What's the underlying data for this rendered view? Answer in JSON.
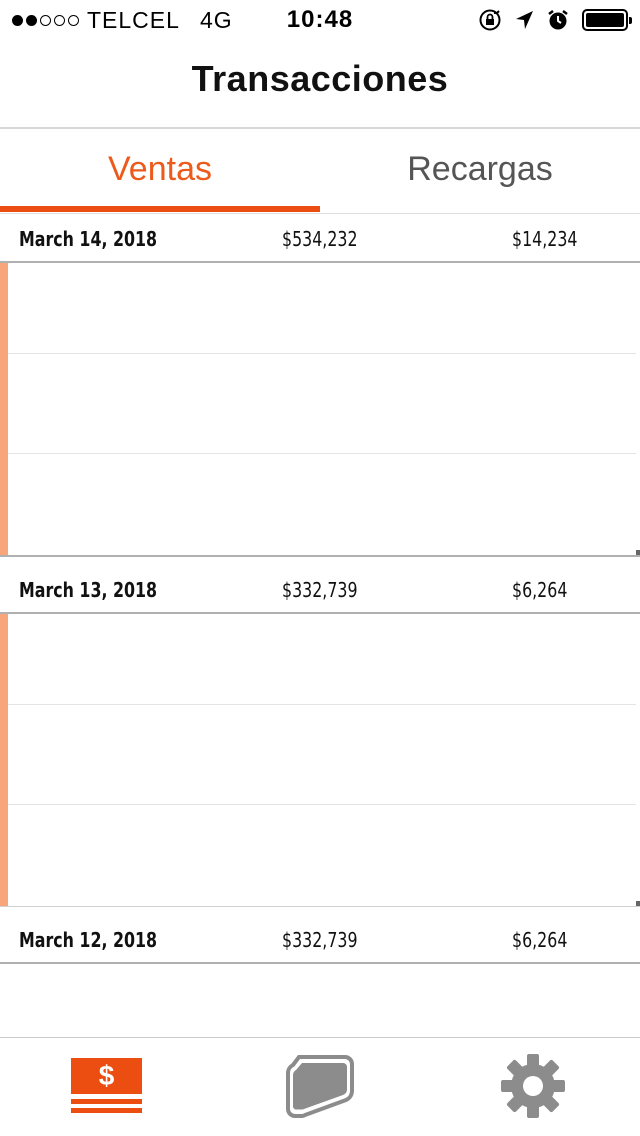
{
  "status_bar": {
    "carrier": "TELCEL",
    "network": "4G",
    "time": "10:48",
    "signal_filled": 2,
    "signal_total": 5
  },
  "nav": {
    "title": "Transacciones"
  },
  "tabs": [
    {
      "label": "Ventas",
      "active": true
    },
    {
      "label": "Recargas",
      "active": false
    }
  ],
  "days": [
    {
      "date": "March 14, 2018",
      "total": "$534,232",
      "recargas": "$14,234"
    },
    {
      "date": "March 13, 2018",
      "total": "$332,739",
      "recargas": "$6,264"
    },
    {
      "date": "March 12, 2018",
      "total": "$332,739",
      "recargas": "$6,264"
    }
  ],
  "tabbar": {
    "items": [
      {
        "icon": "dollar-icon",
        "symbol": "$",
        "active": true
      },
      {
        "icon": "card-icon",
        "active": false
      },
      {
        "icon": "gear-icon",
        "active": false
      }
    ]
  },
  "colors": {
    "accent": "#ec4e12",
    "accent_light": "#f8a57b",
    "inactive": "#8c8c8c"
  }
}
